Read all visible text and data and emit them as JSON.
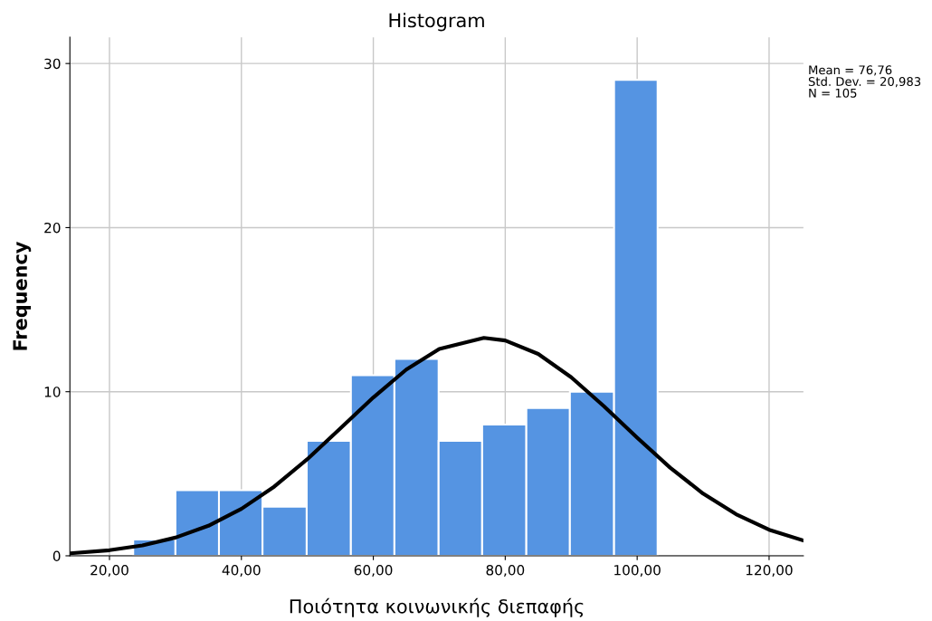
{
  "chart_data": {
    "type": "histogram",
    "title": "Histogram",
    "xlabel": "Ποιότητα κοινωνικής διεπαφής",
    "ylabel": "Frequency",
    "bins": [
      23.6,
      30.0,
      36.6,
      43.2,
      49.9,
      56.6,
      63.2,
      69.9,
      76.5,
      83.2,
      89.8,
      96.5,
      103.1
    ],
    "values": [
      1,
      4,
      4,
      3,
      7,
      11,
      12,
      7,
      8,
      9,
      10,
      29
    ],
    "color": "#5594e2",
    "series": [
      {
        "type": "line",
        "color": "#000000",
        "x": [
          14,
          20,
          25,
          30,
          35,
          40,
          45,
          50,
          55,
          60,
          65,
          70,
          76.76,
          80,
          85,
          90,
          95,
          100,
          105,
          110,
          115,
          120,
          125.2
        ],
        "values": [
          0.15,
          0.34,
          0.63,
          1.11,
          1.83,
          2.86,
          4.22,
          5.89,
          7.76,
          9.65,
          11.35,
          12.6,
          13.28,
          13.12,
          12.3,
          10.88,
          9.1,
          7.2,
          5.37,
          3.79,
          2.53,
          1.59,
          0.93
        ]
      }
    ],
    "xlim": [
      14,
      125.2
    ],
    "ylim": [
      0,
      31.6
    ],
    "xticks": [
      {
        "value": 20,
        "label": "20,00"
      },
      {
        "value": 40,
        "label": "40,00"
      },
      {
        "value": 60,
        "label": "60,00"
      },
      {
        "value": 80,
        "label": "80,00"
      },
      {
        "value": 100,
        "label": "100,00"
      },
      {
        "value": 120,
        "label": "120,00"
      }
    ],
    "yticks": [
      0,
      10,
      20,
      30
    ],
    "grid": true,
    "annotations": [
      "Mean = 76,76",
      "Std. Dev. = 20,983",
      "N = 105"
    ]
  }
}
